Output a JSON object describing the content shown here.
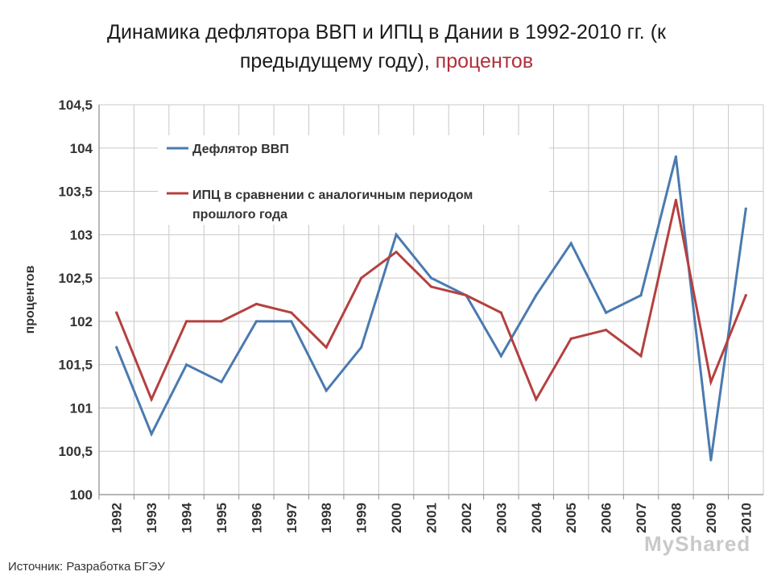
{
  "title": {
    "main": "Динамика дефлятора ВВП и ИПЦ в Дании в 1992-2010 гг. (к",
    "line2_plain": "предыдущему году), ",
    "line2_accent": "процентов",
    "accent_color": "#b0303a"
  },
  "source": "Источник: Разработка БГЭУ",
  "watermark": "MyShared",
  "chart_data": {
    "type": "line",
    "title": "",
    "xlabel": "",
    "ylabel": "процентов",
    "ylim": [
      100,
      104.5
    ],
    "y_ticks": [
      "100",
      "100,5",
      "101",
      "101,5",
      "102",
      "102,5",
      "103",
      "103,5",
      "104",
      "104,5"
    ],
    "y_tick_values": [
      100,
      100.5,
      101,
      101.5,
      102,
      102.5,
      103,
      103.5,
      104,
      104.5
    ],
    "grid": true,
    "legend_position": "top-left",
    "categories": [
      "1992",
      "1993",
      "1994",
      "1995",
      "1996",
      "1997",
      "1998",
      "1999",
      "2000",
      "2001",
      "2002",
      "2003",
      "2004",
      "2005",
      "2006",
      "2007",
      "2008",
      "2009",
      "2010"
    ],
    "series": [
      {
        "name": "Дефлятор ВВП",
        "color": "#4a7ab0",
        "values": [
          101.7,
          100.7,
          101.5,
          101.3,
          102.0,
          102.0,
          101.2,
          101.7,
          103.0,
          102.5,
          102.3,
          101.6,
          102.3,
          102.9,
          102.1,
          102.3,
          103.9,
          100.4,
          103.3
        ]
      },
      {
        "name_lines": [
          "ИПЦ в сравнении с аналогичным периодом",
          "прошлого года"
        ],
        "color": "#b5403f",
        "values": [
          102.1,
          101.1,
          102.0,
          102.0,
          102.2,
          102.1,
          101.7,
          102.5,
          102.8,
          102.4,
          102.3,
          102.1,
          101.1,
          101.8,
          101.9,
          101.6,
          103.4,
          101.3,
          102.3
        ]
      }
    ]
  }
}
